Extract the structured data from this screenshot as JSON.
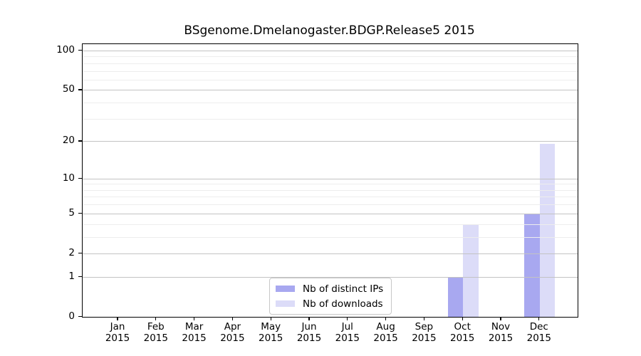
{
  "chart_data": {
    "type": "bar",
    "title": "BSgenome.Dmelanogaster.BDGP.Release5 2015",
    "categories": [
      "Jan 2015",
      "Feb 2015",
      "Mar 2015",
      "Apr 2015",
      "May 2015",
      "Jun 2015",
      "Jul 2015",
      "Aug 2015",
      "Sep 2015",
      "Oct 2015",
      "Nov 2015",
      "Dec 2015"
    ],
    "series": [
      {
        "name": "Nb of distinct IPs",
        "color": "#a8a8f0",
        "values": [
          0,
          0,
          0,
          0,
          0,
          0,
          0,
          0,
          0,
          1,
          0,
          5
        ]
      },
      {
        "name": "Nb of downloads",
        "color": "#dcdcf8",
        "values": [
          0,
          0,
          0,
          0,
          0,
          0,
          0,
          0,
          0,
          4,
          0,
          19
        ]
      }
    ],
    "xlabel": "",
    "ylabel": "",
    "y_axis": {
      "scale": "log1p",
      "range": [
        0,
        100
      ],
      "major_ticks": [
        0,
        1,
        2,
        5,
        10,
        20,
        50,
        100
      ],
      "minor_gridlines": [
        3,
        4,
        6,
        7,
        8,
        9,
        30,
        40,
        60,
        70,
        80,
        90
      ]
    },
    "grid": {
      "major_color": "#c3c3c3",
      "minor_color": "#ededed",
      "drawn_above_bars": true
    },
    "legend": {
      "position": "bottom-center-inside"
    },
    "colors": {
      "background": "#ffffff",
      "text": "#000000",
      "axis": "#000000",
      "legend_border": "#c8c8c8"
    }
  }
}
